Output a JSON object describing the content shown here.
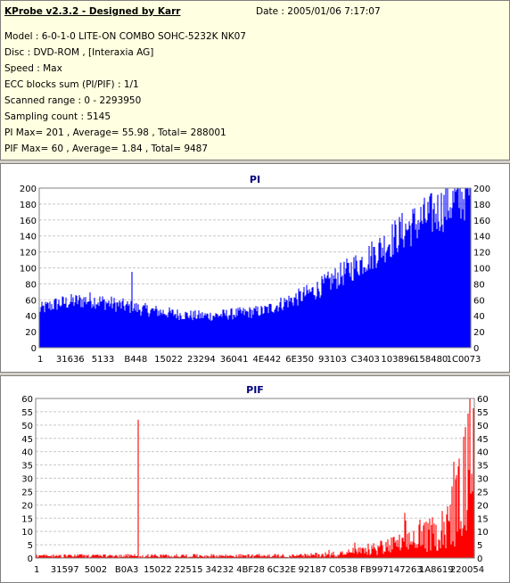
{
  "info": {
    "title": "KProbe v2.3.2 - Designed by Karr",
    "date": "Date : 2005/01/06 7:17:07",
    "lines": [
      "Model : 6-0-1-0 LITE-ON COMBO SOHC-5232K NK07",
      "Disc : DVD-ROM ,  [Interaxia AG]",
      "Speed : Max",
      "ECC blocks sum (PI/PIF) : 1/1",
      "Scanned range : 0 - 2293950",
      "Sampling count : 5145",
      "PI Max= 201 , Average= 55.98 , Total= 288001",
      "PIF Max= 60 , Average= 1.84 , Total= 9487"
    ]
  },
  "chart_data": [
    {
      "type": "area",
      "title": "PI",
      "color": "#0000ff",
      "ylim": [
        0,
        200
      ],
      "yticks": [
        0,
        20,
        40,
        60,
        80,
        100,
        120,
        140,
        160,
        180,
        200
      ],
      "xtick_labels": [
        "1",
        "31636",
        "5133",
        "B448",
        "15022",
        "23294",
        "36041",
        "4E442",
        "6E350",
        "93103",
        "C3403",
        "103896",
        "158480",
        "1C0073"
      ],
      "x": [
        0,
        0.04,
        0.08,
        0.12,
        0.16,
        0.2,
        0.24,
        0.28,
        0.32,
        0.36,
        0.4,
        0.44,
        0.48,
        0.52,
        0.56,
        0.6,
        0.64,
        0.68,
        0.72,
        0.76,
        0.8,
        0.84,
        0.88,
        0.92,
        0.96,
        1.0
      ],
      "values": [
        48,
        55,
        58,
        60,
        56,
        52,
        48,
        45,
        42,
        40,
        40,
        42,
        44,
        46,
        55,
        63,
        72,
        85,
        98,
        112,
        128,
        145,
        158,
        170,
        183,
        195
      ],
      "spikes": [
        {
          "x": 0.215,
          "value": 95
        },
        {
          "x": 0.99,
          "value": 201
        }
      ]
    },
    {
      "type": "area",
      "title": "PIF",
      "color": "#ff0000",
      "ylim": [
        0,
        60
      ],
      "yticks": [
        0,
        5,
        10,
        15,
        20,
        25,
        30,
        35,
        40,
        45,
        50,
        55,
        60
      ],
      "xtick_labels": [
        "1",
        "31597",
        "5002",
        "B0A3",
        "15022",
        "22515",
        "34232",
        "4BF28",
        "6C32E",
        "92187",
        "C0538",
        "FB997",
        "147263",
        "1A8619",
        "220054"
      ],
      "x": [
        0,
        0.1,
        0.2,
        0.3,
        0.4,
        0.5,
        0.6,
        0.7,
        0.75,
        0.8,
        0.85,
        0.9,
        0.93,
        0.96,
        0.98,
        1.0
      ],
      "values": [
        1,
        1,
        1,
        1,
        1,
        1,
        1,
        2,
        3,
        5,
        7,
        10,
        14,
        22,
        35,
        45
      ],
      "spikes": [
        {
          "x": 0.234,
          "value": 52
        },
        {
          "x": 0.99,
          "value": 60
        }
      ]
    }
  ]
}
